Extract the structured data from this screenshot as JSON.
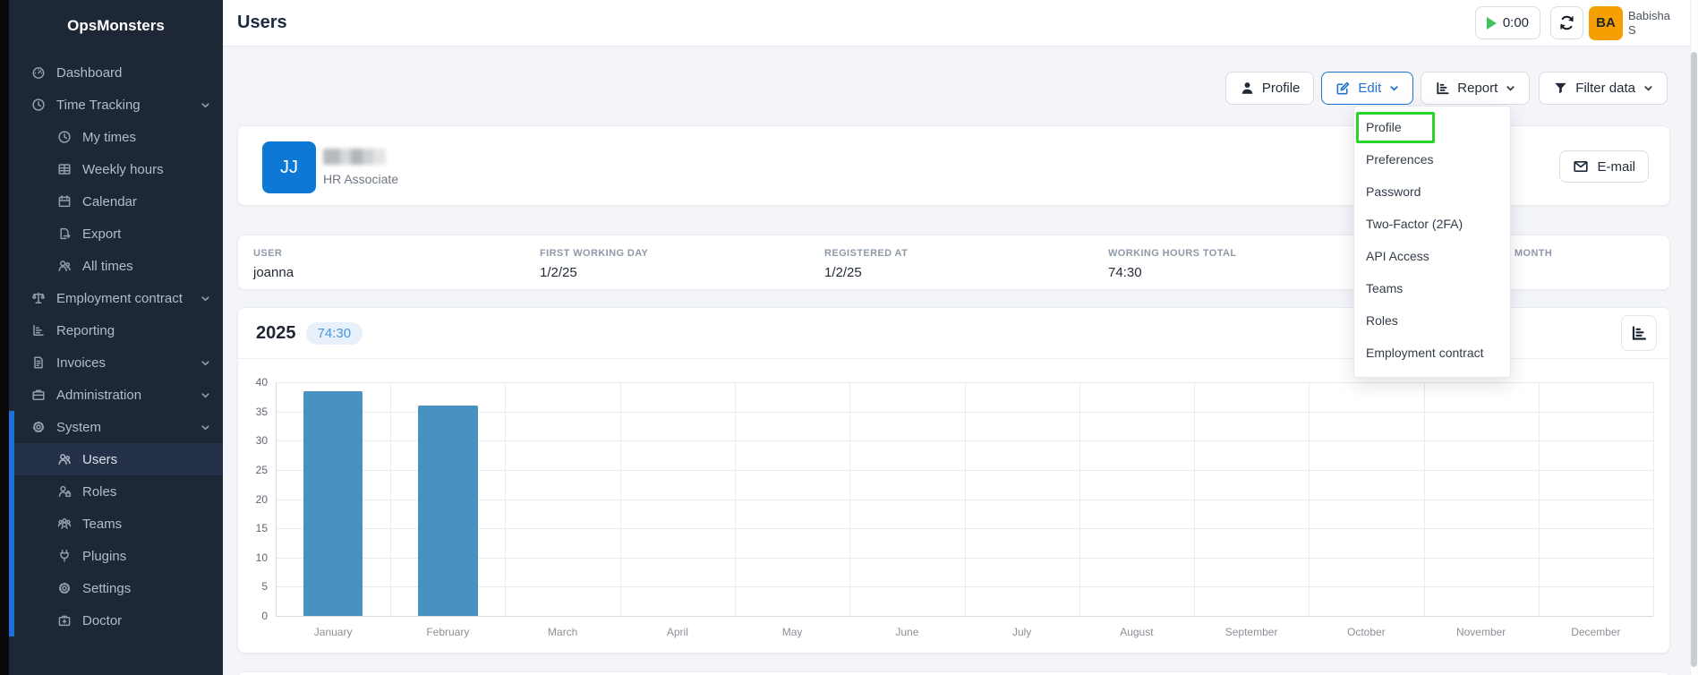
{
  "app_name": "OpsMonsters",
  "header": {
    "title": "Users",
    "timer_value": "0:00",
    "avatar_initials": "BA",
    "user_name_line1": "Babisha",
    "user_name_line2": "S"
  },
  "toolbar": {
    "profile_label": "Profile",
    "edit_label": "Edit",
    "report_label": "Report",
    "filter_label": "Filter data"
  },
  "edit_menu": {
    "items": [
      "Profile",
      "Preferences",
      "Password",
      "Two-Factor (2FA)",
      "API Access",
      "Teams",
      "Roles",
      "Employment contract"
    ],
    "highlighted_item": "Profile",
    "highlight_color": "#2bd42b"
  },
  "sidebar": {
    "items": [
      {
        "label": "Dashboard",
        "icon": "gauge-icon",
        "level": 0
      },
      {
        "label": "Time Tracking",
        "icon": "clock-icon",
        "level": 0,
        "chevron": true
      },
      {
        "label": "My times",
        "icon": "clock-icon",
        "level": 1
      },
      {
        "label": "Weekly hours",
        "icon": "table-icon",
        "level": 1
      },
      {
        "label": "Calendar",
        "icon": "calendar-icon",
        "level": 1
      },
      {
        "label": "Export",
        "icon": "file-export-icon",
        "level": 1
      },
      {
        "label": "All times",
        "icon": "users-icon",
        "level": 1
      },
      {
        "label": "Employment contract",
        "icon": "scale-icon",
        "level": 0,
        "chevron": true
      },
      {
        "label": "Reporting",
        "icon": "report-icon",
        "level": 0
      },
      {
        "label": "Invoices",
        "icon": "invoice-icon",
        "level": 0,
        "chevron": true
      },
      {
        "label": "Administration",
        "icon": "briefcase-icon",
        "level": 0,
        "chevron": true
      },
      {
        "label": "System",
        "icon": "gear-icon",
        "level": 0,
        "chevron": true,
        "section": true
      },
      {
        "label": "Users",
        "icon": "users-icon",
        "level": 1,
        "section": true,
        "active": true
      },
      {
        "label": "Roles",
        "icon": "user-lock-icon",
        "level": 1,
        "section": true
      },
      {
        "label": "Teams",
        "icon": "team-icon",
        "level": 1,
        "section": true
      },
      {
        "label": "Plugins",
        "icon": "plug-icon",
        "level": 1,
        "section": true
      },
      {
        "label": "Settings",
        "icon": "gear-icon",
        "level": 1,
        "section": true
      },
      {
        "label": "Doctor",
        "icon": "medical-bag-icon",
        "level": 1,
        "section": true
      }
    ]
  },
  "user_card": {
    "initials": "JJ",
    "name_hidden": true,
    "role": "HR Associate",
    "email_button_label": "E-mail"
  },
  "info_card": {
    "columns": [
      {
        "label": "USER",
        "value": "joanna"
      },
      {
        "label": "FIRST WORKING DAY",
        "value": "1/2/25"
      },
      {
        "label": "REGISTERED AT",
        "value": "1/2/25"
      },
      {
        "label": "WORKING HOURS TOTAL",
        "value": "74:30"
      },
      {
        "label": "WORKING HOURS THIS MONTH",
        "value": ""
      }
    ]
  },
  "chart_card": {
    "title": "2025",
    "badge": "74:30"
  },
  "chart_data": {
    "type": "bar",
    "title": "2025",
    "categories": [
      "January",
      "February",
      "March",
      "April",
      "May",
      "June",
      "July",
      "August",
      "September",
      "October",
      "November",
      "December"
    ],
    "values": [
      38.5,
      36,
      0,
      0,
      0,
      0,
      0,
      0,
      0,
      0,
      0,
      0
    ],
    "xlabel": "",
    "ylabel": "",
    "ylim": [
      0,
      40
    ],
    "ytick_step": 5,
    "grid": true,
    "legend": false,
    "bar_color": "#4792c3",
    "total_badge": "74:30"
  },
  "colors": {
    "accent_blue": "#206bc4",
    "sidebar_bg": "#1d2736",
    "highlight_green": "#2bd42b",
    "bar_blue": "#4792c3",
    "avatar_orange": "#f59f00",
    "avatar_blue": "#0d79d4"
  }
}
